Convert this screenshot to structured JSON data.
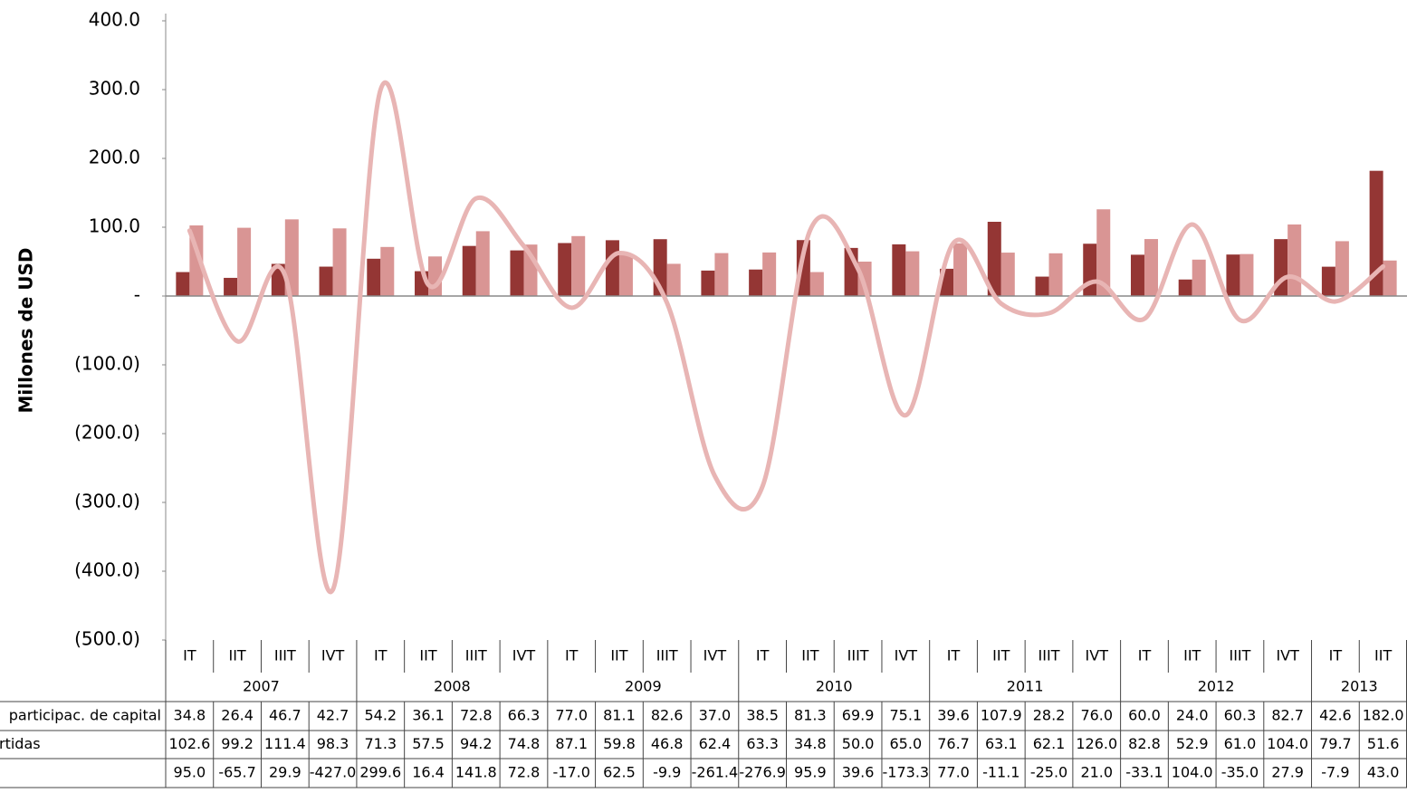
{
  "chart_data": {
    "type": "bar-line",
    "y_label": "Millones de USD",
    "categories": [
      "IT",
      "IIT",
      "IIIT",
      "IVT",
      "IT",
      "IIT",
      "IIIT",
      "IVT",
      "IT",
      "IIT",
      "IIIT",
      "IVT",
      "IT",
      "IIT",
      "IIIT",
      "IVT",
      "IT",
      "IIT",
      "IIIT",
      "IVT",
      "IT",
      "IIT",
      "IIIT",
      "IVT",
      "IT",
      "IIT"
    ],
    "category_groups": [
      "2007",
      null,
      null,
      null,
      "2008",
      null,
      null,
      null,
      "2009",
      null,
      null,
      null,
      "2010",
      null,
      null,
      null,
      "2011",
      null,
      null,
      null,
      "2012",
      null,
      null,
      null,
      "2013",
      null
    ],
    "ylim": [
      -500,
      400
    ],
    "yticks": [
      {
        "value": -500,
        "label": "(500.0)"
      },
      {
        "value": -400,
        "label": "(400.0)"
      },
      {
        "value": -300,
        "label": "(300.0)"
      },
      {
        "value": -200,
        "label": "(200.0)"
      },
      {
        "value": -100,
        "label": "(100.0)"
      },
      {
        "value": 0,
        "label": "-"
      },
      {
        "value": 100,
        "label": "100.0"
      },
      {
        "value": 200,
        "label": "200.0"
      },
      {
        "value": 300,
        "label": "300.0"
      },
      {
        "value": 400,
        "label": "400.0"
      }
    ],
    "series": [
      {
        "name": "participac. de capital",
        "type": "bar",
        "color": "#943634",
        "values": [
          34.8,
          26.4,
          46.7,
          42.7,
          54.2,
          36.1,
          72.8,
          66.3,
          77.0,
          81.1,
          82.6,
          37.0,
          38.5,
          81.3,
          69.9,
          75.1,
          39.6,
          107.9,
          28.2,
          76.0,
          60.0,
          24.0,
          60.3,
          82.7,
          42.6,
          182.0
        ],
        "value_labels": [
          "34.8",
          "26.4",
          "46.7",
          "42.7",
          "54.2",
          "36.1",
          "72.8",
          "66.3",
          "77.0",
          "81.1",
          "82.6",
          "37.0",
          "38.5",
          "81.3",
          "69.9",
          "75.1",
          "39.6",
          "107.9",
          "28.2",
          "76.0",
          "60.0",
          "24.0",
          "60.3",
          "82.7",
          "42.6",
          "182.0"
        ]
      },
      {
        "name": "rtidas",
        "type": "bar",
        "color": "#d99594",
        "values": [
          102.6,
          99.2,
          111.4,
          98.3,
          71.3,
          57.5,
          94.2,
          74.8,
          87.1,
          59.8,
          46.8,
          62.4,
          63.3,
          34.8,
          50.0,
          65.0,
          76.7,
          63.1,
          62.1,
          126.0,
          82.8,
          52.9,
          61.0,
          104.0,
          79.7,
          51.6
        ],
        "value_labels": [
          "102.6",
          "99.2",
          "111.4",
          "98.3",
          "71.3",
          "57.5",
          "94.2",
          "74.8",
          "87.1",
          "59.8",
          "46.8",
          "62.4",
          "63.3",
          "34.8",
          "50.0",
          "65.0",
          "76.7",
          "63.1",
          "62.1",
          "126.0",
          "82.8",
          "52.9",
          "61.0",
          "104.0",
          "79.7",
          "51.6"
        ]
      },
      {
        "type": "line",
        "color": "#e8b5b4",
        "values": [
          95.0,
          -65.7,
          29.9,
          -427.0,
          299.6,
          16.4,
          141.8,
          72.8,
          -17.0,
          62.5,
          -9.9,
          -261.4,
          -276.9,
          95.9,
          39.6,
          -173.3,
          77.0,
          -11.1,
          -25.0,
          21.0,
          -33.1,
          104.0,
          -35.0,
          27.9,
          -7.9,
          43.0
        ],
        "value_labels": [
          "95.0",
          "-65.7",
          "29.9",
          "-427.0",
          "299.6",
          "16.4",
          "141.8",
          "72.8",
          "-17.0",
          "62.5",
          "-9.9",
          "-261.4",
          "-276.9",
          "95.9",
          "39.6",
          "-173.3",
          "77.0",
          "-11.1",
          "-25.0",
          "21.0",
          "-33.1",
          "104.0",
          "-35.0",
          "27.9",
          "-7.9",
          "43.0"
        ]
      }
    ]
  }
}
